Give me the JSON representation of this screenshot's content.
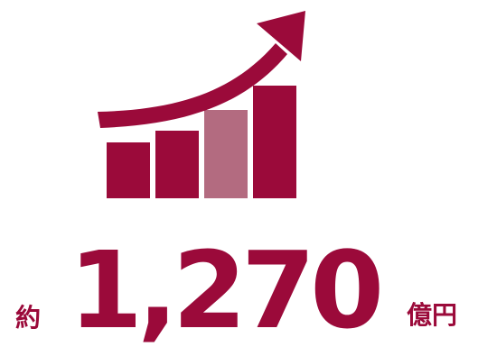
{
  "graphic": {
    "icon": "rising-bar-chart-with-arrow",
    "colors": {
      "primary": "#9b0a3a",
      "highlight_bar": "#b36b80"
    }
  },
  "figure": {
    "prefix": "約",
    "amount": "1,270",
    "unit": "億円"
  }
}
